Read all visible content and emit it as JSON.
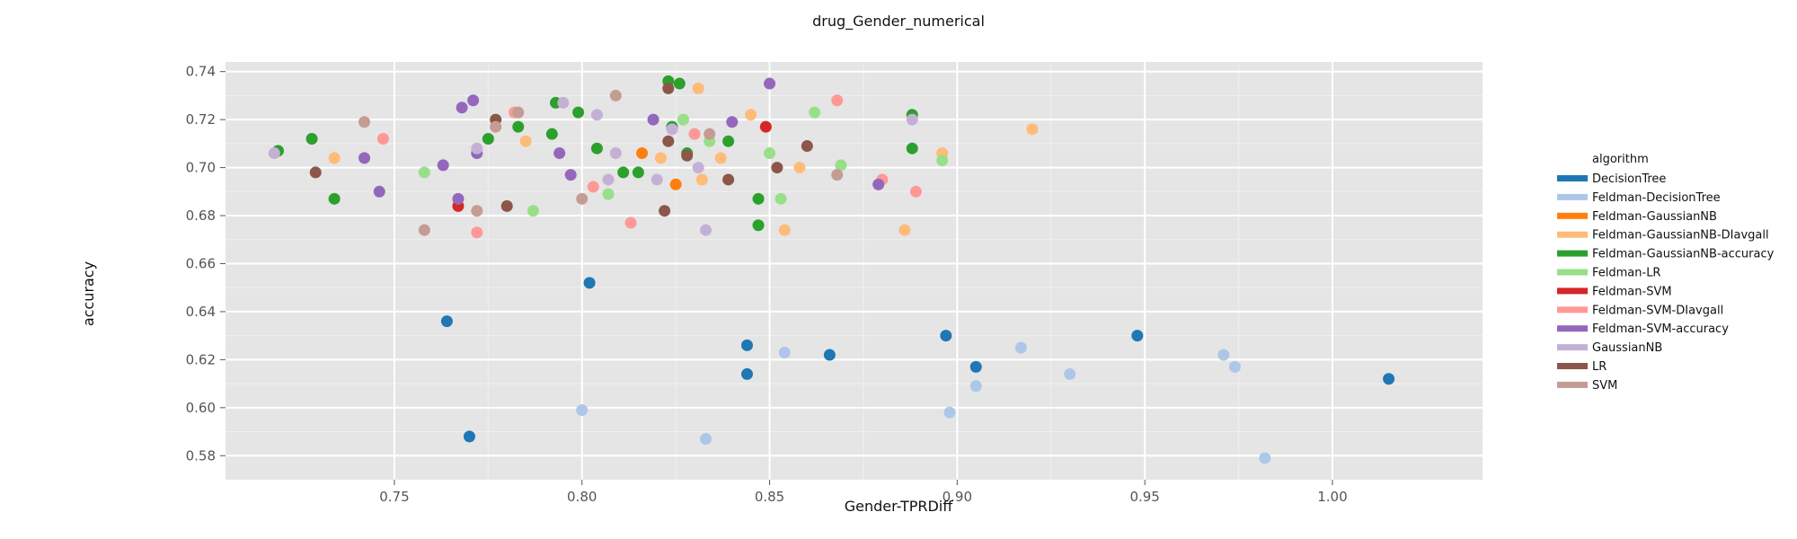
{
  "chart_data": {
    "type": "scatter",
    "title": "drug_Gender_numerical",
    "xlabel": "Gender-TPRDiff",
    "ylabel": "accuracy",
    "xlim": [
      0.705,
      1.04
    ],
    "ylim": [
      0.57,
      0.744
    ],
    "x_ticks": [
      0.75,
      0.8,
      0.85,
      0.9,
      0.95,
      1.0
    ],
    "x_tick_labels": [
      "0.75",
      "0.80",
      "0.85",
      "0.90",
      "0.95",
      "1.00"
    ],
    "y_ticks": [
      0.58,
      0.6,
      0.62,
      0.64,
      0.66,
      0.68,
      0.7,
      0.72,
      0.74
    ],
    "y_tick_labels": [
      "0.58",
      "0.60",
      "0.62",
      "0.64",
      "0.66",
      "0.68",
      "0.70",
      "0.72",
      "0.74"
    ],
    "grid": true,
    "legend": {
      "title": "algorithm",
      "position": "right"
    },
    "series": [
      {
        "name": "DecisionTree",
        "color": "#1f77b4",
        "points": [
          [
            0.764,
            0.636
          ],
          [
            0.77,
            0.588
          ],
          [
            0.802,
            0.652
          ],
          [
            0.844,
            0.626
          ],
          [
            0.844,
            0.614
          ],
          [
            0.866,
            0.622
          ],
          [
            0.897,
            0.63
          ],
          [
            0.905,
            0.617
          ],
          [
            0.948,
            0.63
          ],
          [
            1.015,
            0.612
          ]
        ]
      },
      {
        "name": "Feldman-DecisionTree",
        "color": "#aec7e8",
        "points": [
          [
            0.8,
            0.599
          ],
          [
            0.833,
            0.587
          ],
          [
            0.854,
            0.623
          ],
          [
            0.898,
            0.598
          ],
          [
            0.905,
            0.609
          ],
          [
            0.917,
            0.625
          ],
          [
            0.93,
            0.614
          ],
          [
            0.971,
            0.622
          ],
          [
            0.974,
            0.617
          ],
          [
            0.982,
            0.579
          ]
        ]
      },
      {
        "name": "Feldman-GaussianNB",
        "color": "#ff7f0e",
        "points": [
          [
            0.816,
            0.706
          ],
          [
            0.825,
            0.693
          ]
        ]
      },
      {
        "name": "Feldman-GaussianNB-DIavgall",
        "color": "#ffbb78",
        "points": [
          [
            0.734,
            0.704
          ],
          [
            0.785,
            0.711
          ],
          [
            0.821,
            0.704
          ],
          [
            0.831,
            0.733
          ],
          [
            0.832,
            0.695
          ],
          [
            0.837,
            0.704
          ],
          [
            0.845,
            0.722
          ],
          [
            0.854,
            0.674
          ],
          [
            0.858,
            0.7
          ],
          [
            0.886,
            0.674
          ],
          [
            0.896,
            0.706
          ],
          [
            0.92,
            0.716
          ]
        ]
      },
      {
        "name": "Feldman-GaussianNB-accuracy",
        "color": "#2ca02c",
        "points": [
          [
            0.719,
            0.707
          ],
          [
            0.728,
            0.712
          ],
          [
            0.734,
            0.687
          ],
          [
            0.775,
            0.712
          ],
          [
            0.783,
            0.717
          ],
          [
            0.792,
            0.714
          ],
          [
            0.793,
            0.727
          ],
          [
            0.799,
            0.723
          ],
          [
            0.804,
            0.708
          ],
          [
            0.811,
            0.698
          ],
          [
            0.815,
            0.698
          ],
          [
            0.823,
            0.736
          ],
          [
            0.824,
            0.717
          ],
          [
            0.826,
            0.735
          ],
          [
            0.828,
            0.706
          ],
          [
            0.839,
            0.711
          ],
          [
            0.847,
            0.687
          ],
          [
            0.847,
            0.676
          ],
          [
            0.888,
            0.722
          ],
          [
            0.888,
            0.708
          ]
        ]
      },
      {
        "name": "Feldman-LR",
        "color": "#98df8a",
        "points": [
          [
            0.758,
            0.698
          ],
          [
            0.787,
            0.682
          ],
          [
            0.807,
            0.689
          ],
          [
            0.827,
            0.72
          ],
          [
            0.834,
            0.711
          ],
          [
            0.85,
            0.706
          ],
          [
            0.853,
            0.687
          ],
          [
            0.862,
            0.723
          ],
          [
            0.869,
            0.701
          ],
          [
            0.896,
            0.703
          ]
        ]
      },
      {
        "name": "Feldman-SVM",
        "color": "#d62728",
        "points": [
          [
            0.767,
            0.684
          ],
          [
            0.849,
            0.717
          ]
        ]
      },
      {
        "name": "Feldman-SVM-DIavgall",
        "color": "#ff9896",
        "points": [
          [
            0.747,
            0.712
          ],
          [
            0.772,
            0.673
          ],
          [
            0.782,
            0.723
          ],
          [
            0.803,
            0.692
          ],
          [
            0.813,
            0.677
          ],
          [
            0.83,
            0.714
          ],
          [
            0.868,
            0.728
          ],
          [
            0.88,
            0.695
          ],
          [
            0.889,
            0.69
          ]
        ]
      },
      {
        "name": "Feldman-SVM-accuracy",
        "color": "#9467bd",
        "points": [
          [
            0.742,
            0.704
          ],
          [
            0.746,
            0.69
          ],
          [
            0.763,
            0.701
          ],
          [
            0.767,
            0.687
          ],
          [
            0.768,
            0.725
          ],
          [
            0.771,
            0.728
          ],
          [
            0.772,
            0.706
          ],
          [
            0.794,
            0.706
          ],
          [
            0.797,
            0.697
          ],
          [
            0.819,
            0.72
          ],
          [
            0.84,
            0.719
          ],
          [
            0.85,
            0.735
          ],
          [
            0.879,
            0.693
          ]
        ]
      },
      {
        "name": "GaussianNB",
        "color": "#c5b0d5",
        "points": [
          [
            0.718,
            0.706
          ],
          [
            0.772,
            0.708
          ],
          [
            0.795,
            0.727
          ],
          [
            0.804,
            0.722
          ],
          [
            0.807,
            0.695
          ],
          [
            0.809,
            0.706
          ],
          [
            0.82,
            0.695
          ],
          [
            0.824,
            0.716
          ],
          [
            0.831,
            0.7
          ],
          [
            0.833,
            0.674
          ],
          [
            0.888,
            0.72
          ]
        ]
      },
      {
        "name": "LR",
        "color": "#8c564b",
        "points": [
          [
            0.729,
            0.698
          ],
          [
            0.777,
            0.72
          ],
          [
            0.78,
            0.684
          ],
          [
            0.822,
            0.682
          ],
          [
            0.823,
            0.711
          ],
          [
            0.823,
            0.733
          ],
          [
            0.828,
            0.705
          ],
          [
            0.839,
            0.695
          ],
          [
            0.852,
            0.7
          ],
          [
            0.86,
            0.709
          ]
        ]
      },
      {
        "name": "SVM",
        "color": "#c49c94",
        "points": [
          [
            0.742,
            0.719
          ],
          [
            0.758,
            0.674
          ],
          [
            0.772,
            0.682
          ],
          [
            0.777,
            0.717
          ],
          [
            0.783,
            0.723
          ],
          [
            0.8,
            0.687
          ],
          [
            0.809,
            0.73
          ],
          [
            0.834,
            0.714
          ],
          [
            0.868,
            0.697
          ]
        ]
      }
    ]
  }
}
